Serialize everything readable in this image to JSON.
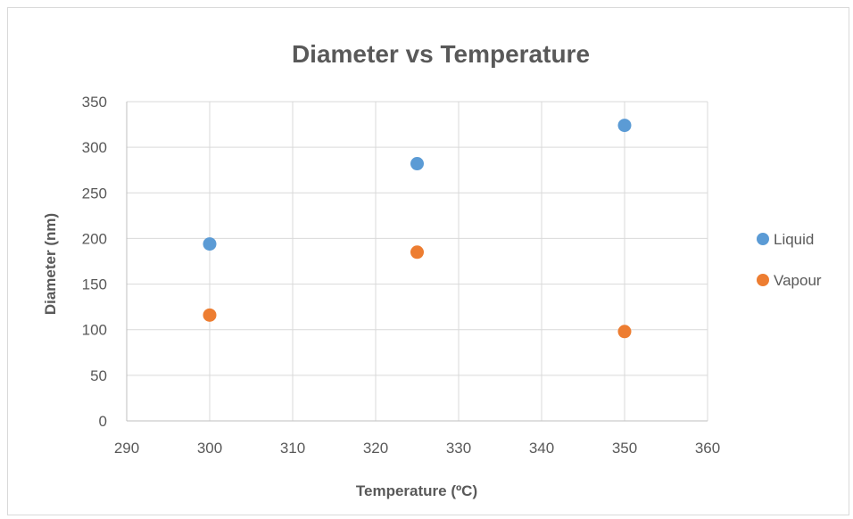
{
  "chart_data": {
    "type": "scatter",
    "title": "Diameter vs Temperature",
    "xlabel": "Temperature (ºC)",
    "ylabel": "Diameter (nm)",
    "xlim": [
      290,
      360
    ],
    "ylim": [
      0,
      350
    ],
    "xticks": [
      290,
      300,
      310,
      320,
      330,
      340,
      350,
      360
    ],
    "yticks": [
      0,
      50,
      100,
      150,
      200,
      250,
      300,
      350
    ],
    "grid": true,
    "legend_position": "right",
    "series": [
      {
        "name": "Liquid",
        "color": "#5b9bd5",
        "x": [
          300,
          325,
          350
        ],
        "y": [
          194,
          282,
          324
        ]
      },
      {
        "name": "Vapour",
        "color": "#ed7d31",
        "x": [
          300,
          325,
          350
        ],
        "y": [
          116,
          185,
          98
        ]
      }
    ]
  }
}
